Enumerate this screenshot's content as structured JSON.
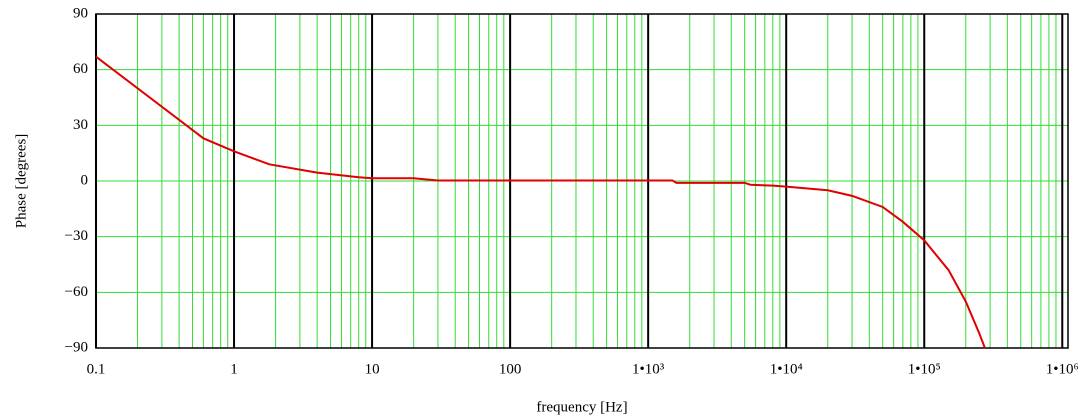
{
  "chart_data": {
    "type": "line",
    "log_x": true,
    "grid": true,
    "minor_grid": true,
    "x_label": "frequency  [Hz]",
    "y_label": "Phase  [degrees]",
    "grid_color": "#33dd33",
    "major_grid_color": "#000000",
    "x": [
      0.1,
      0.6,
      1,
      1.8,
      4,
      8,
      10,
      20,
      30,
      100,
      1000,
      1500,
      1600,
      5000,
      5500,
      8000,
      10000,
      20000,
      30000,
      50000,
      70000,
      100000,
      150000,
      200000,
      250000,
      275000
    ],
    "series": [
      {
        "color": "#e00000",
        "values": [
          67,
          23,
          16,
          9,
          4.5,
          2,
          1.5,
          1.5,
          0.3,
          0.3,
          0.3,
          0.3,
          -1,
          -1,
          -2,
          -2.5,
          -3,
          -5,
          -8,
          -14,
          -22,
          -32,
          -48,
          -65,
          -82,
          -90
        ]
      }
    ],
    "xlim": [
      0.1,
      1100000
    ],
    "xticks": [
      0.1,
      1,
      10,
      100,
      {
        "value": 1000,
        "label": "1•10³"
      },
      {
        "value": 10000,
        "label": "1•10⁴"
      },
      {
        "value": 100000,
        "label": "1•10⁵"
      },
      {
        "value": 1000000,
        "label": "1•10⁶"
      }
    ],
    "ylim": [
      -90,
      90
    ],
    "yticks": [
      {
        "value": -90,
        "label": "−90"
      },
      {
        "value": -60,
        "label": "−60"
      },
      {
        "value": -30,
        "label": "−30"
      },
      0,
      30,
      60,
      90
    ]
  }
}
